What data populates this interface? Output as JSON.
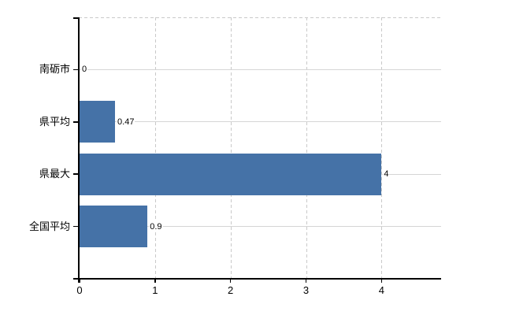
{
  "chart_data": {
    "type": "bar",
    "orientation": "horizontal",
    "title": "",
    "xlabel": "",
    "ylabel": "",
    "categories": [
      "南砺市",
      "県平均",
      "県最大",
      "全国平均"
    ],
    "values": [
      0,
      0.47,
      4,
      0.9
    ],
    "value_labels": [
      "0",
      "0.47",
      "4",
      "0.9"
    ],
    "x_ticks": [
      0,
      1,
      2,
      3,
      4
    ],
    "x_tick_labels": [
      "0",
      "1",
      "2",
      "3",
      "4"
    ],
    "xlim": [
      0,
      4.8
    ],
    "grid": true,
    "legend": false
  },
  "colors": {
    "bar": "#4572a7",
    "axis": "#000000",
    "hgrid": "#d5d5d5",
    "vgrid_dash": "#c9c9c9",
    "top_border_dash": "#c9c9c9",
    "text": "#000000",
    "background": "#ffffff"
  }
}
